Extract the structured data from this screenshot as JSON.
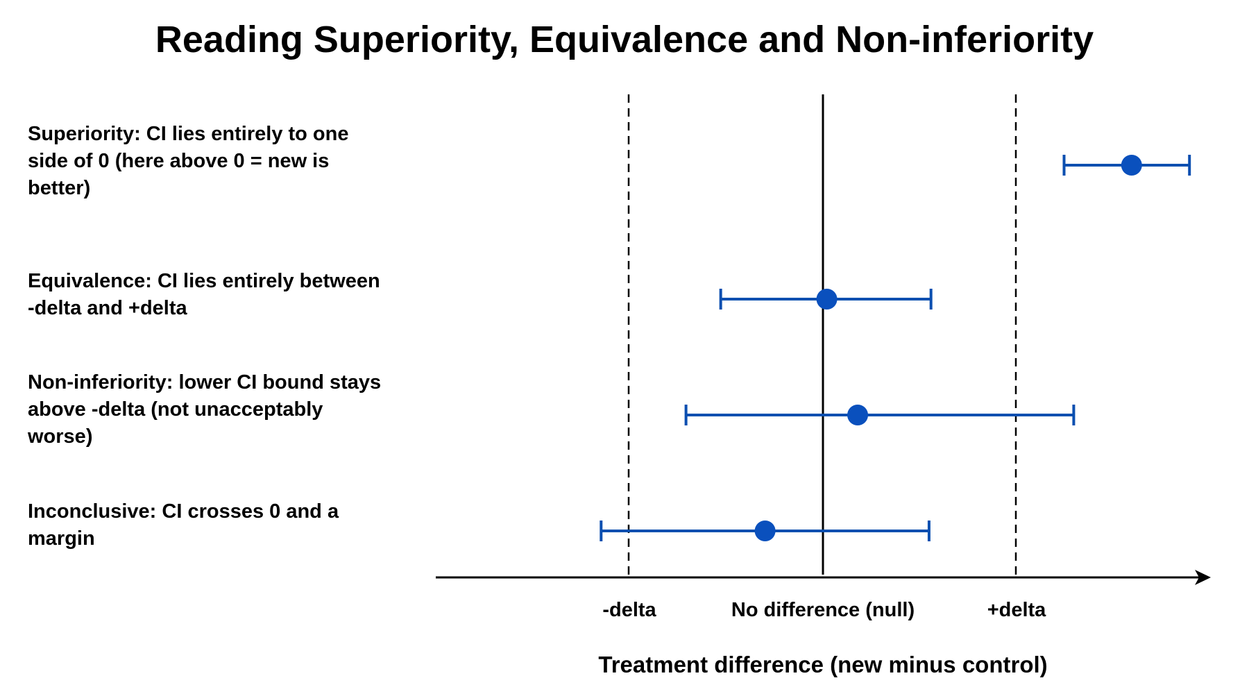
{
  "title": "Reading Superiority, Equivalence and Non-inferiority",
  "row_labels": {
    "superiority": "Superiority: CI lies entirely to one side of 0 (here above 0 = new is better)",
    "equivalence": "Equivalence: CI lies entirely between -delta and +delta",
    "noninferiority": "Non-inferiority: lower CI bound stays above -delta (not unacceptably worse)",
    "inconclusive": "Inconclusive: CI crosses 0 and a margin"
  },
  "axis": {
    "title": "Treatment difference (new minus control)",
    "tick_minus_delta": "-delta",
    "tick_null": "No difference (null)",
    "tick_plus_delta": "+delta"
  },
  "intervals": [
    {
      "name": "superiority",
      "lower": 1.25,
      "estimate": 1.6,
      "upper": 1.9
    },
    {
      "name": "equivalence",
      "lower": -0.53,
      "estimate": 0.02,
      "upper": 0.56
    },
    {
      "name": "noninferiority",
      "lower": -0.71,
      "estimate": 0.18,
      "upper": 1.3
    },
    {
      "name": "inconclusive",
      "lower": -1.15,
      "estimate": -0.3,
      "upper": 0.55
    }
  ],
  "colors": {
    "interval": "#0b4fb0",
    "point": "#0a50bd",
    "lines": "#000000"
  }
}
